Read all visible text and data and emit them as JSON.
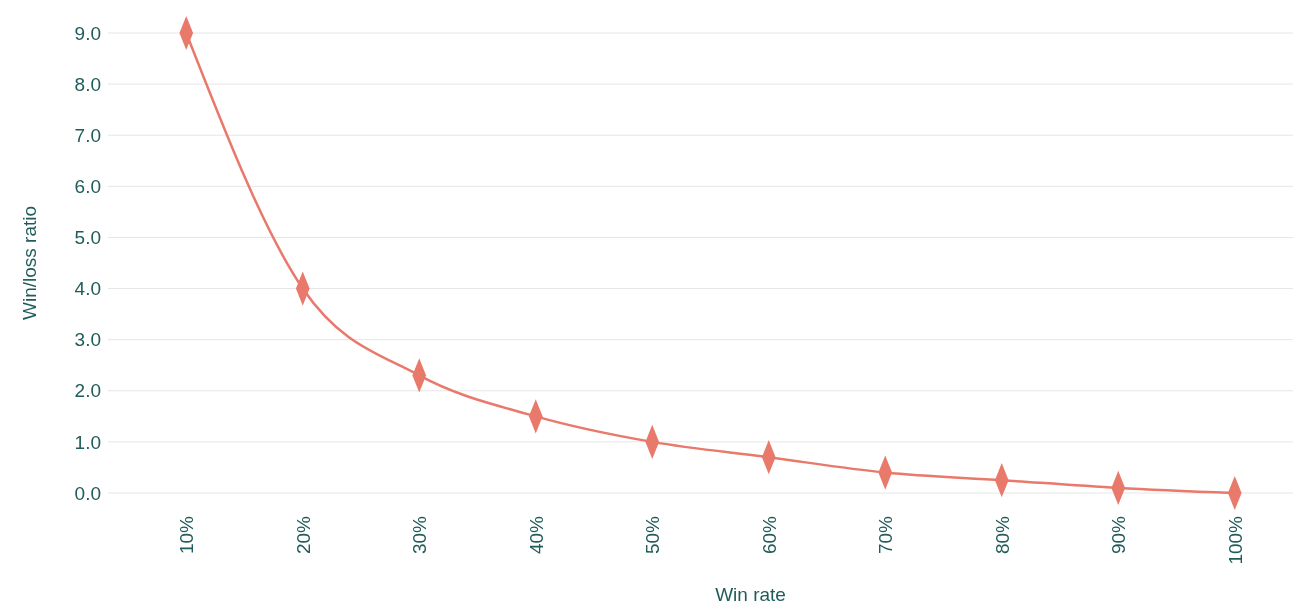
{
  "chart_data": {
    "type": "line",
    "xlabel": "Win rate",
    "ylabel": "Win/loss ratio",
    "categories": [
      "10%",
      "20%",
      "30%",
      "40%",
      "50%",
      "60%",
      "70%",
      "80%",
      "90%",
      "100%"
    ],
    "series": [
      {
        "color": "#e8796b",
        "values": [
          9,
          4,
          2.3,
          1.5,
          1,
          0.7,
          0.4,
          0.25,
          0.1,
          0
        ]
      }
    ],
    "ylim": [
      0,
      9
    ],
    "yticks": [
      {
        "value": 0,
        "label": "0.0"
      },
      {
        "value": 1,
        "label": "1.0"
      },
      {
        "value": 2,
        "label": "2.0"
      },
      {
        "value": 3,
        "label": "3.0"
      },
      {
        "value": 4,
        "label": "4.0"
      },
      {
        "value": 5,
        "label": "5.0"
      },
      {
        "value": 6,
        "label": "6.0"
      },
      {
        "value": 7,
        "label": "7.0"
      },
      {
        "value": 8,
        "label": "8.0"
      },
      {
        "value": 9,
        "label": "9.0"
      }
    ],
    "grid": "y",
    "marker": "diamond",
    "line_style": "solid"
  }
}
